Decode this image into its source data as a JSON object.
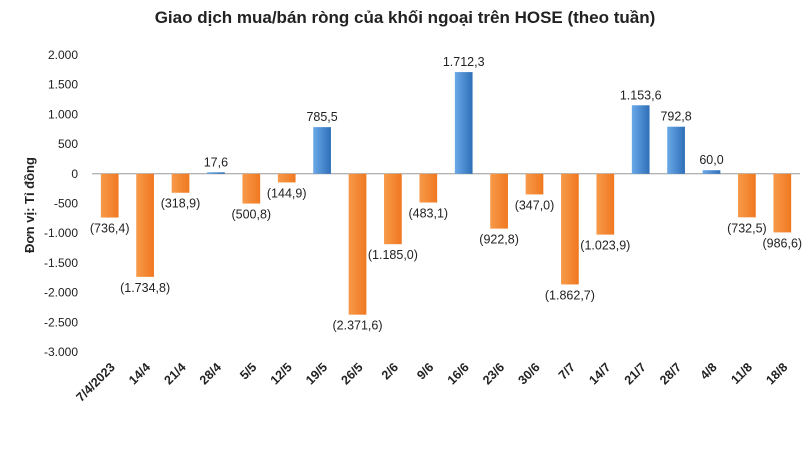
{
  "chart_data": {
    "type": "bar",
    "title": "Giao dịch mua/bán ròng của khối ngoại trên HOSE (theo tuần)",
    "xlabel": "",
    "ylabel": "Đơn vị: Tỉ đồng",
    "ylim": [
      -3000,
      2000
    ],
    "yticks": [
      2000,
      1500,
      1000,
      500,
      0,
      -500,
      -1000,
      -1500,
      -2000,
      -2500,
      -3000
    ],
    "ytick_labels": [
      "2.000",
      "1.500",
      "1.000",
      "500",
      "0",
      "-500",
      "-1.000",
      "-1.500",
      "-2.000",
      "-2.500",
      "-3.000"
    ],
    "grid": false,
    "categories": [
      "7/4/2023",
      "14/4",
      "21/4",
      "28/4",
      "5/5",
      "12/5",
      "19/5",
      "26/5",
      "2/6",
      "9/6",
      "16/6",
      "23/6",
      "30/6",
      "7/7",
      "14/7",
      "21/7",
      "28/7",
      "4/8",
      "11/8",
      "18/8"
    ],
    "values": [
      -736.4,
      -1734.8,
      -318.9,
      17.6,
      -500.8,
      -144.9,
      785.5,
      -2371.6,
      -1185.0,
      -483.1,
      1712.3,
      -922.8,
      -347.0,
      -1862.7,
      -1023.9,
      1153.6,
      792.8,
      60.0,
      -732.5,
      -986.6
    ],
    "data_labels": [
      "(736,4)",
      "(1.734,8)",
      "(318,9)",
      "17,6",
      "(500,8)",
      "(144,9)",
      "785,5",
      "(2.371,6)",
      "(1.185,0)",
      "(483,1)",
      "1.712,3",
      "(922,8)",
      "(347,0)",
      "(1.862,7)",
      "(1.023,9)",
      "1.153,6",
      "792,8",
      "60,0",
      "(732,5)",
      "(986,6)"
    ],
    "colors": {
      "positive": "#4a90d9",
      "positive_dark": "#2e6fb8",
      "negative": "#f5842a",
      "axis": "#999999",
      "text": "#222222"
    }
  }
}
